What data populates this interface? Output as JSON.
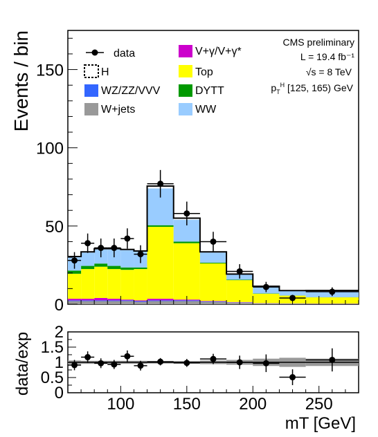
{
  "chart_data": [
    {
      "type": "bar",
      "stacked": true,
      "ylabel": "Events / bin",
      "xlim": [
        60,
        280
      ],
      "ylim": [
        0,
        175
      ],
      "yticks": [
        0,
        50,
        100,
        150
      ],
      "bins": [
        [
          60,
          70
        ],
        [
          70,
          80
        ],
        [
          80,
          90
        ],
        [
          90,
          100
        ],
        [
          100,
          110
        ],
        [
          110,
          120
        ],
        [
          120,
          140
        ],
        [
          140,
          160
        ],
        [
          160,
          180
        ],
        [
          180,
          200
        ],
        [
          200,
          220
        ],
        [
          220,
          240
        ],
        [
          240,
          280
        ]
      ],
      "series": [
        {
          "name": "W+jets",
          "color": "#999999",
          "values": [
            2,
            2,
            2,
            2,
            2,
            1.5,
            2,
            2,
            1.5,
            1,
            0.5,
            0.3,
            0.2
          ]
        },
        {
          "name": "WZ/ZZ/VVV",
          "color": "#3366ff",
          "values": [
            0.5,
            0.5,
            0.5,
            0.5,
            0.5,
            0.5,
            0.5,
            0.5,
            0.3,
            0.2,
            0.1,
            0.1,
            0.1
          ]
        },
        {
          "name": "V+γ/V+γ*",
          "color": "#cc00cc",
          "values": [
            1,
            1,
            1.5,
            1,
            0.5,
            0.5,
            1,
            0.5,
            0.3,
            0.2,
            0.1,
            0.1,
            0.1
          ]
        },
        {
          "name": "Top",
          "color": "#ffff00",
          "values": [
            16,
            19,
            20,
            19,
            19,
            20,
            46,
            36,
            24,
            14,
            6,
            5,
            4
          ]
        },
        {
          "name": "DYTT",
          "color": "#009900",
          "values": [
            2,
            2,
            2,
            2,
            1.5,
            1,
            1,
            1,
            0.5,
            0.3,
            0.2,
            0.1,
            0.1
          ]
        },
        {
          "name": "WW",
          "color": "#99ccff",
          "values": [
            8.5,
            8.5,
            9,
            10.5,
            11,
            10,
            23.5,
            14,
            6.4,
            3.3,
            4.3,
            2.9,
            4.1
          ]
        },
        {
          "name": "H",
          "color": "#000000",
          "values": [
            0.5,
            0.5,
            0.5,
            0.5,
            0.5,
            0.5,
            1.5,
            1,
            0.5,
            0.3,
            0.3,
            0.2,
            0.2
          ]
        }
      ],
      "data": {
        "name": "data",
        "x": [
          65,
          75,
          85,
          95,
          105,
          115,
          130,
          150,
          170,
          190,
          210,
          230,
          260
        ],
        "y": [
          28,
          39,
          36,
          36,
          42,
          32,
          77,
          58,
          40,
          21,
          11,
          4,
          8
        ],
        "yerr": [
          5.3,
          6.2,
          6.0,
          6.0,
          6.5,
          5.7,
          8.8,
          7.6,
          6.3,
          4.6,
          3.3,
          2.0,
          2.8
        ]
      },
      "legend": [
        "data",
        "V+γ/V+γ*",
        "H",
        "Top",
        "WZ/ZZ/VVV",
        "DYTT",
        "W+jets",
        "WW"
      ],
      "annotations": [
        "CMS preliminary",
        "L = 19.4 fb⁻¹",
        "√s = 8 TeV",
        "p",
        "T",
        "H",
        " [125, 165) GeV"
      ]
    },
    {
      "type": "scatter",
      "xlabel": "mT [GeV]",
      "ylabel": "data/exp",
      "xlim": [
        60,
        280
      ],
      "ylim": [
        0,
        2
      ],
      "yticks": [
        "0",
        "0.5",
        "1",
        "1.5",
        "2"
      ],
      "xticks": [
        "100",
        "150",
        "200",
        "250"
      ],
      "x": [
        65,
        75,
        85,
        95,
        105,
        115,
        130,
        150,
        170,
        190,
        210,
        230,
        260
      ],
      "y": [
        0.91,
        1.17,
        0.97,
        0.93,
        1.2,
        0.89,
        1.02,
        0.98,
        1.11,
        1.0,
        0.97,
        0.51,
        1.08
      ],
      "yerr": [
        0.17,
        0.19,
        0.16,
        0.15,
        0.19,
        0.16,
        0.12,
        0.13,
        0.17,
        0.22,
        0.29,
        0.26,
        0.38
      ],
      "band_halfwidth": [
        0.06,
        0.05,
        0.05,
        0.05,
        0.05,
        0.05,
        0.04,
        0.04,
        0.06,
        0.08,
        0.12,
        0.15,
        0.12
      ],
      "reference_line": 1
    }
  ]
}
